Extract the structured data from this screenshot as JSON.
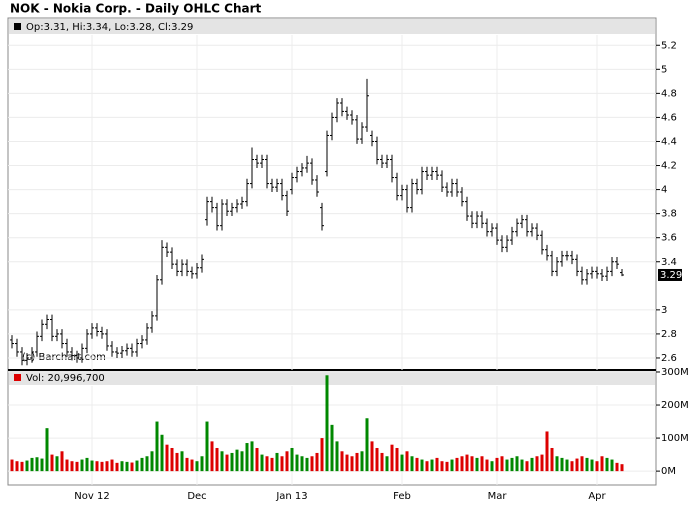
{
  "chart_data": {
    "type": "ohlc",
    "title": "NOK - Nokia Corp. - Daily OHLC Chart",
    "ohlc_label": "Op:3.31, Hi:3.34, Lo:3.28, Cl:3.29",
    "volume_label": "Vol: 20,996,700",
    "watermark": "(c) Barchart.com",
    "categories": [
      null,
      null,
      null,
      null,
      null,
      null,
      null,
      null,
      null,
      null,
      null,
      null,
      null,
      null,
      null,
      null,
      "Nov 12",
      null,
      null,
      null,
      null,
      null,
      null,
      null,
      null,
      null,
      null,
      null,
      null,
      null,
      null,
      null,
      null,
      null,
      null,
      null,
      null,
      "Dec",
      null,
      null,
      null,
      null,
      null,
      null,
      null,
      null,
      null,
      null,
      null,
      null,
      null,
      null,
      null,
      null,
      null,
      null,
      "Jan 13",
      null,
      null,
      null,
      null,
      null,
      null,
      null,
      null,
      null,
      null,
      null,
      null,
      null,
      null,
      null,
      null,
      null,
      null,
      null,
      null,
      null,
      "Feb",
      null,
      null,
      null,
      null,
      null,
      null,
      null,
      null,
      null,
      null,
      null,
      null,
      null,
      null,
      null,
      null,
      null,
      null,
      "Mar",
      null,
      null,
      null,
      null,
      null,
      null,
      null,
      null,
      null,
      null,
      null,
      null,
      null,
      null,
      null,
      null,
      null,
      null,
      null,
      "Apr",
      null,
      null,
      null,
      null,
      null
    ],
    "open": [
      2.75,
      2.72,
      2.65,
      2.58,
      2.6,
      2.65,
      2.78,
      2.88,
      2.92,
      2.78,
      2.8,
      2.72,
      2.65,
      2.62,
      2.6,
      2.68,
      2.8,
      2.85,
      2.82,
      2.8,
      2.7,
      2.65,
      2.64,
      2.66,
      2.68,
      2.65,
      2.72,
      2.75,
      2.85,
      2.95,
      3.25,
      3.52,
      3.48,
      3.38,
      3.32,
      3.38,
      3.32,
      3.3,
      3.35,
      3.75,
      3.9,
      3.85,
      3.7,
      3.88,
      3.82,
      3.85,
      3.88,
      3.9,
      4.05,
      4.25,
      4.22,
      4.25,
      4.05,
      4.02,
      4.05,
      3.95,
      4.0,
      4.1,
      4.15,
      4.18,
      4.22,
      4.08,
      3.85,
      4.15,
      4.45,
      4.6,
      4.72,
      4.65,
      4.62,
      4.58,
      4.42,
      4.52,
      4.45,
      4.4,
      4.25,
      4.22,
      4.25,
      4.1,
      3.95,
      4.0,
      3.85,
      4.05,
      4.0,
      4.15,
      4.12,
      4.15,
      4.12,
      4.02,
      3.98,
      4.05,
      3.98,
      3.9,
      3.78,
      3.72,
      3.78,
      3.72,
      3.65,
      3.68,
      3.58,
      3.52,
      3.58,
      3.65,
      3.72,
      3.75,
      3.65,
      3.68,
      3.62,
      3.5,
      3.45,
      3.32,
      3.4,
      3.45,
      3.45,
      3.42,
      3.32,
      3.25,
      3.3,
      3.32,
      3.3,
      3.28,
      3.32,
      3.4,
      3.31
    ],
    "high": [
      2.79,
      2.76,
      2.69,
      2.64,
      2.69,
      2.82,
      2.92,
      2.96,
      2.96,
      2.84,
      2.84,
      2.76,
      2.69,
      2.66,
      2.72,
      2.84,
      2.89,
      2.89,
      2.86,
      2.84,
      2.74,
      2.69,
      2.7,
      2.72,
      2.72,
      2.76,
      2.79,
      2.89,
      2.99,
      3.29,
      3.58,
      3.56,
      3.52,
      3.42,
      3.42,
      3.42,
      3.36,
      3.39,
      3.46,
      3.94,
      3.94,
      3.89,
      3.92,
      3.92,
      3.89,
      3.92,
      3.94,
      4.09,
      4.35,
      4.29,
      4.29,
      4.29,
      4.09,
      4.09,
      4.09,
      3.99,
      4.14,
      4.19,
      4.22,
      4.28,
      4.26,
      4.12,
      3.89,
      4.49,
      4.64,
      4.76,
      4.76,
      4.69,
      4.66,
      4.62,
      4.56,
      4.92,
      4.49,
      4.44,
      4.29,
      4.29,
      4.29,
      4.14,
      4.04,
      4.04,
      4.09,
      4.09,
      4.19,
      4.19,
      4.19,
      4.19,
      4.16,
      4.06,
      4.09,
      4.09,
      4.02,
      3.94,
      3.82,
      3.82,
      3.82,
      3.76,
      3.72,
      3.72,
      3.62,
      3.62,
      3.69,
      3.76,
      3.79,
      3.79,
      3.72,
      3.72,
      3.66,
      3.54,
      3.49,
      3.44,
      3.49,
      3.49,
      3.49,
      3.46,
      3.36,
      3.34,
      3.36,
      3.36,
      3.34,
      3.36,
      3.44,
      3.44,
      3.34
    ],
    "low": [
      2.68,
      2.61,
      2.54,
      2.54,
      2.56,
      2.61,
      2.74,
      2.84,
      2.74,
      2.74,
      2.68,
      2.61,
      2.58,
      2.56,
      2.56,
      2.64,
      2.76,
      2.78,
      2.76,
      2.66,
      2.61,
      2.6,
      2.6,
      2.62,
      2.61,
      2.61,
      2.68,
      2.71,
      2.81,
      2.91,
      3.21,
      3.44,
      3.34,
      3.28,
      3.28,
      3.28,
      3.26,
      3.26,
      3.31,
      3.7,
      3.81,
      3.66,
      3.66,
      3.78,
      3.78,
      3.81,
      3.84,
      3.86,
      4.01,
      4.18,
      4.18,
      4.01,
      3.98,
      3.98,
      3.91,
      3.78,
      3.96,
      4.06,
      4.11,
      4.14,
      4.04,
      3.94,
      3.66,
      4.11,
      4.41,
      4.56,
      4.61,
      4.58,
      4.54,
      4.38,
      4.38,
      4.48,
      4.36,
      4.21,
      4.18,
      4.18,
      4.06,
      3.91,
      3.91,
      3.81,
      3.81,
      3.96,
      3.96,
      4.08,
      4.08,
      4.08,
      3.98,
      3.94,
      3.94,
      3.94,
      3.86,
      3.74,
      3.68,
      3.68,
      3.68,
      3.61,
      3.61,
      3.54,
      3.48,
      3.48,
      3.54,
      3.61,
      3.68,
      3.61,
      3.61,
      3.58,
      3.46,
      3.41,
      3.28,
      3.28,
      3.36,
      3.41,
      3.38,
      3.28,
      3.21,
      3.21,
      3.26,
      3.26,
      3.24,
      3.24,
      3.28,
      3.34,
      3.28
    ],
    "close": [
      2.72,
      2.65,
      2.58,
      2.6,
      2.65,
      2.78,
      2.88,
      2.92,
      2.78,
      2.8,
      2.72,
      2.65,
      2.62,
      2.6,
      2.68,
      2.8,
      2.85,
      2.82,
      2.8,
      2.7,
      2.65,
      2.64,
      2.66,
      2.68,
      2.65,
      2.72,
      2.75,
      2.85,
      2.95,
      3.25,
      3.52,
      3.48,
      3.38,
      3.32,
      3.38,
      3.32,
      3.3,
      3.35,
      3.42,
      3.9,
      3.85,
      3.7,
      3.88,
      3.82,
      3.85,
      3.88,
      3.9,
      4.05,
      4.25,
      4.22,
      4.25,
      4.05,
      4.02,
      4.05,
      3.95,
      3.82,
      4.1,
      4.15,
      4.18,
      4.22,
      4.08,
      3.98,
      3.7,
      4.45,
      4.6,
      4.72,
      4.65,
      4.62,
      4.58,
      4.42,
      4.52,
      4.78,
      4.4,
      4.25,
      4.22,
      4.25,
      4.1,
      3.95,
      4.0,
      3.85,
      4.05,
      4.0,
      4.15,
      4.12,
      4.15,
      4.12,
      4.02,
      3.98,
      4.05,
      3.98,
      3.9,
      3.78,
      3.72,
      3.78,
      3.72,
      3.65,
      3.68,
      3.58,
      3.52,
      3.58,
      3.65,
      3.72,
      3.75,
      3.65,
      3.68,
      3.62,
      3.5,
      3.45,
      3.32,
      3.4,
      3.45,
      3.45,
      3.42,
      3.32,
      3.25,
      3.3,
      3.32,
      3.3,
      3.28,
      3.32,
      3.4,
      3.38,
      3.29
    ],
    "volume": [
      35,
      30,
      28,
      32,
      40,
      42,
      38,
      130,
      50,
      45,
      60,
      35,
      30,
      28,
      35,
      40,
      32,
      30,
      28,
      30,
      35,
      25,
      30,
      28,
      26,
      32,
      40,
      45,
      60,
      150,
      110,
      80,
      70,
      55,
      60,
      40,
      35,
      30,
      45,
      150,
      90,
      70,
      60,
      50,
      55,
      65,
      60,
      85,
      90,
      70,
      50,
      45,
      40,
      55,
      45,
      60,
      70,
      50,
      45,
      40,
      45,
      55,
      100,
      290,
      140,
      90,
      60,
      50,
      45,
      55,
      60,
      160,
      90,
      70,
      55,
      45,
      80,
      70,
      50,
      60,
      45,
      40,
      35,
      30,
      35,
      40,
      30,
      28,
      35,
      40,
      45,
      50,
      45,
      40,
      45,
      35,
      30,
      40,
      45,
      35,
      40,
      45,
      35,
      30,
      40,
      45,
      50,
      120,
      70,
      45,
      40,
      35,
      30,
      38,
      45,
      40,
      35,
      30,
      45,
      40,
      35,
      25,
      20.9967
    ],
    "color": "#000000",
    "up_color": "#008800",
    "down_color": "#dd0000",
    "ylim": [
      2.5,
      5.41
    ],
    "yticks": [
      2.6,
      2.8,
      3,
      3.4,
      3.6,
      3.8,
      4,
      4.2,
      4.4,
      4.6,
      4.8,
      5,
      5.2
    ],
    "volume_ylim": [
      -42,
      306
    ],
    "volume_yticks": [
      {
        "value": 0,
        "label": "0M"
      },
      {
        "value": 100,
        "label": "100M"
      },
      {
        "value": 200,
        "label": "200M"
      },
      {
        "value": 300,
        "label": "300M"
      }
    ],
    "grid": true
  }
}
